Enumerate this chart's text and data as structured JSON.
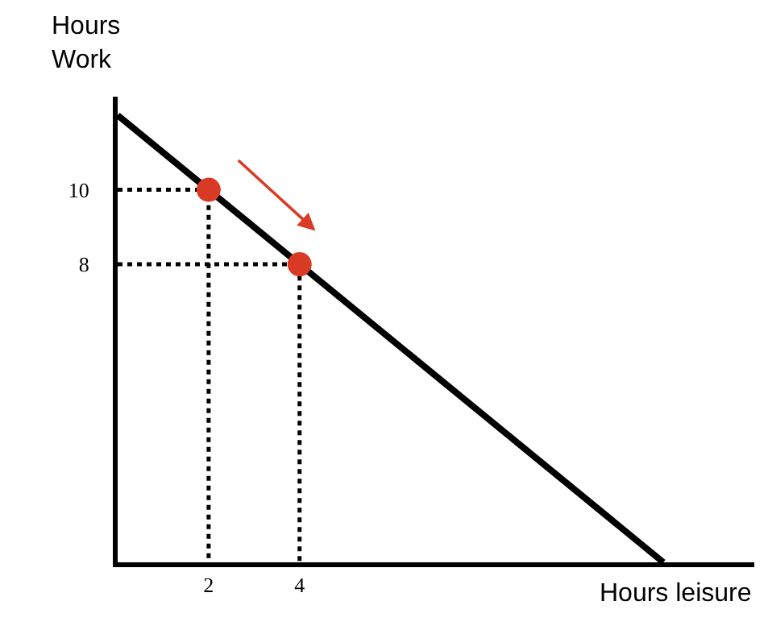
{
  "chart_data": {
    "type": "line",
    "xlabel": "Hours leisure",
    "ylabel": "Hours\nWork",
    "xlim": [
      0,
      14
    ],
    "ylim": [
      0,
      12.5
    ],
    "xticks": [
      2,
      4
    ],
    "yticks": [
      8,
      10
    ],
    "series": [
      {
        "color": "#000000",
        "x": [
          0,
          12
        ],
        "values": [
          12,
          0
        ],
        "line_style": "solid",
        "marker": "none"
      },
      {
        "color": "#000000",
        "x": [
          0,
          2,
          2
        ],
        "values": [
          10,
          10,
          0
        ],
        "line_style": "dotted",
        "marker": "none"
      },
      {
        "color": "#000000",
        "x": [
          0,
          4,
          4
        ],
        "values": [
          8,
          8,
          0
        ],
        "line_style": "dotted",
        "marker": "none"
      },
      {
        "type": "scatter",
        "color": "#d93a26",
        "x": [
          2,
          4
        ],
        "values": [
          10,
          8
        ],
        "marker": "circle"
      }
    ]
  }
}
